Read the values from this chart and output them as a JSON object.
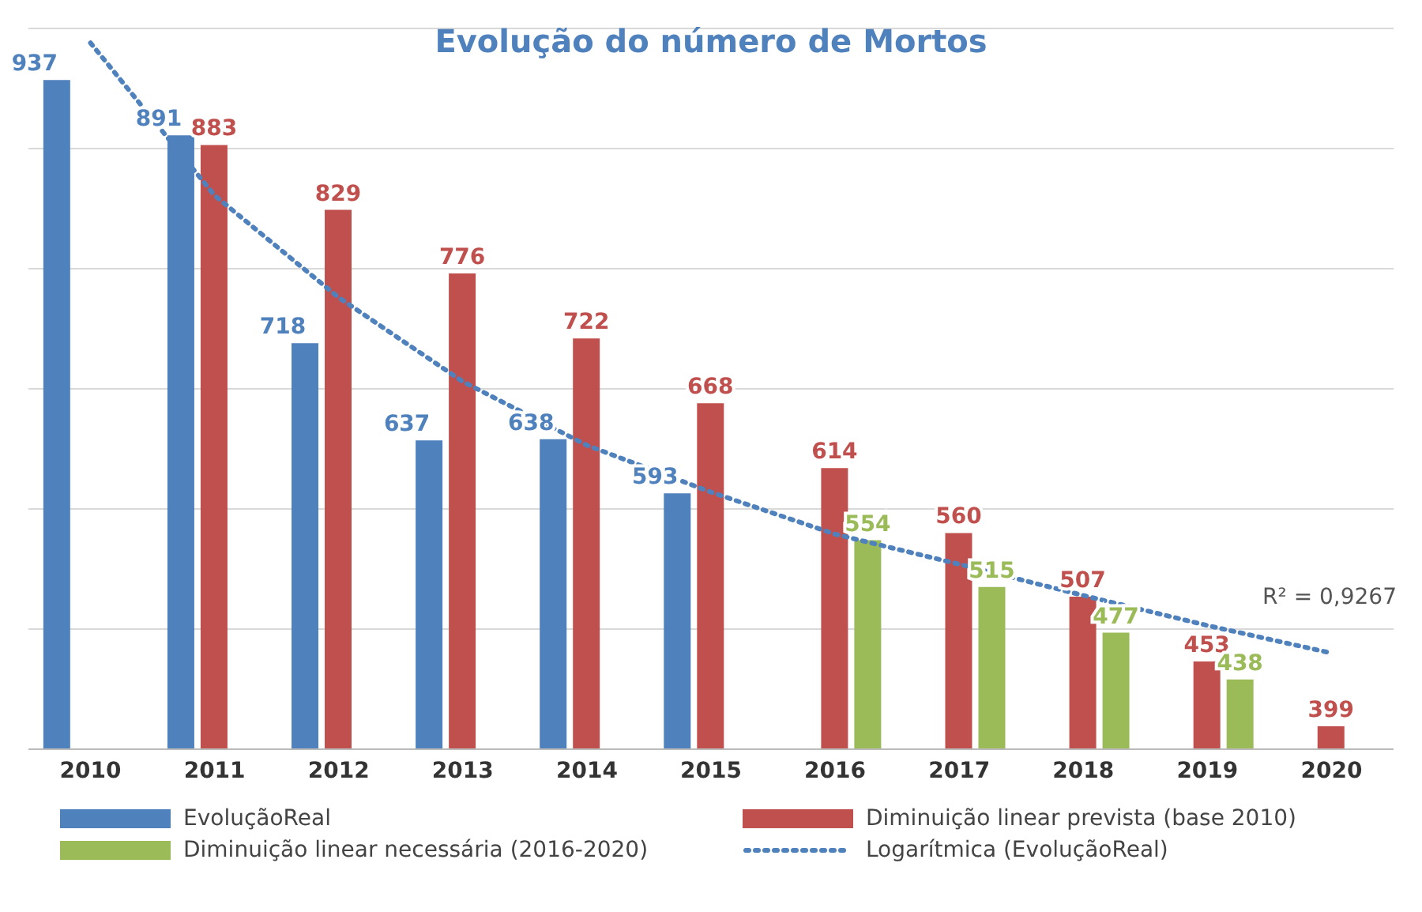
{
  "chart_data": {
    "type": "bar",
    "title": "Evolução do número de Mortos",
    "categories": [
      "2010",
      "2011",
      "2012",
      "2013",
      "2014",
      "2015",
      "2016",
      "2017",
      "2018",
      "2019",
      "2020"
    ],
    "series": [
      {
        "name": "EvoluçãoReal",
        "color": "#4f81bd",
        "values": [
          937,
          891,
          718,
          637,
          638,
          593,
          null,
          null,
          null,
          null,
          null
        ],
        "value_labels": [
          "937",
          "891",
          "718",
          "637",
          "638",
          "593",
          null,
          null,
          null,
          null,
          null
        ]
      },
      {
        "name": "Diminuição linear prevista (base 2010)",
        "color": "#c0504d",
        "values": [
          null,
          883,
          829,
          776,
          722,
          668,
          614,
          560,
          507,
          453,
          399
        ],
        "value_labels": [
          null,
          "883",
          "829",
          "776",
          "722",
          "668",
          "614",
          "560",
          "507",
          "453",
          "399"
        ]
      },
      {
        "name": "Diminuição linear necessária (2016-2020)",
        "color": "#9bbb59",
        "values": [
          null,
          null,
          null,
          null,
          null,
          null,
          554,
          515,
          477,
          438,
          null
        ],
        "value_labels": [
          null,
          null,
          null,
          null,
          null,
          null,
          "554",
          "515",
          "477",
          "438",
          null
        ]
      },
      {
        "name": "Logarítmica (EvoluçãoReal)",
        "type": "line",
        "color": "#4f81bd",
        "line_style": "dotted",
        "marker": "none",
        "values": [
          968,
          841,
          756,
          686,
          633,
          594,
          559,
          534,
          508,
          483,
          460
        ]
      }
    ],
    "ylim": [
      380,
      980
    ],
    "grid": "y",
    "tick_labels": "x",
    "legend": "bottom",
    "annotations": [
      "R² = 0,9267"
    ]
  }
}
